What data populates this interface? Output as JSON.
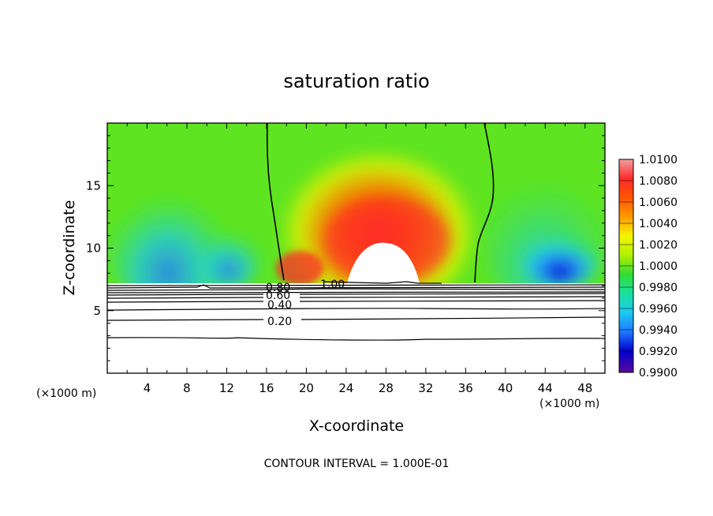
{
  "chart_data": {
    "type": "heatmap",
    "title": "saturation ratio",
    "xlabel": "X-coordinate",
    "ylabel": "Z-coordinate",
    "x_unit_label": "(×1000 m)",
    "xlim": [
      0,
      50
    ],
    "ylim": [
      0,
      20
    ],
    "x_ticks": [
      4,
      8,
      12,
      16,
      20,
      24,
      28,
      32,
      36,
      40,
      44,
      48
    ],
    "y_ticks": [
      5,
      10,
      15
    ],
    "colorbar": {
      "levels": [
        "1.0100",
        "1.0080",
        "1.0060",
        "1.0040",
        "1.0020",
        "1.0000",
        "0.9980",
        "0.9960",
        "0.9940",
        "0.9920",
        "0.9900"
      ],
      "min": 0.99,
      "max": 1.01,
      "colors": [
        "#f2a0a0",
        "#ff2a2a",
        "#ff5500",
        "#ff9900",
        "#f5f500",
        "#b0f000",
        "#33dd33",
        "#1be0a0",
        "#1ec8f0",
        "#1e78ff",
        "#0000cc",
        "#5a0a9c"
      ]
    },
    "contours": [
      {
        "label": "1.00",
        "level": 1.0,
        "x": 19.5,
        "z": 7.2
      },
      {
        "label": "0.80",
        "level": 0.8,
        "x": 17.0,
        "z": 6.8
      },
      {
        "label": "0.60",
        "level": 0.6,
        "x": 17.0,
        "z": 6.3
      },
      {
        "label": "0.40",
        "level": 0.4,
        "x": 17.0,
        "z": 5.5
      },
      {
        "label": "0.20",
        "level": 0.2,
        "x": 17.0,
        "z": 4.2
      }
    ],
    "footnote": "CONTOUR INTERVAL = 1.000E-01"
  }
}
